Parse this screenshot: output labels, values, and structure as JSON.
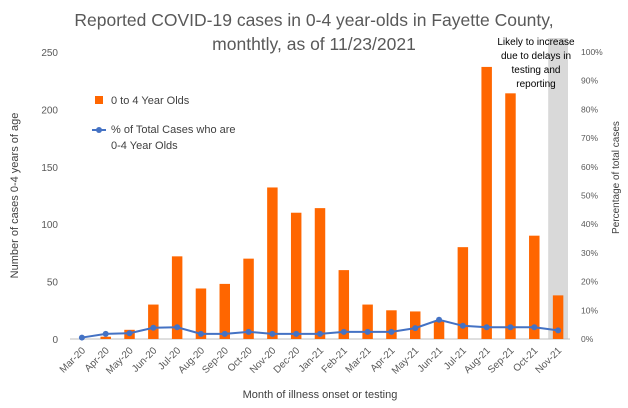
{
  "title_line1": "Reported COVID-19 cases in 0-4 year-olds in Fayette County,",
  "title_line2": "monthtly, as of 11/23/2021",
  "chart_data": {
    "type": "bar",
    "categories": [
      "Mar-20",
      "Apr-20",
      "May-20",
      "Jun-20",
      "Jul-20",
      "Aug-20",
      "Sep-20",
      "Oct-20",
      "Nov-20",
      "Dec-20",
      "Jan-21",
      "Feb-21",
      "Mar-21",
      "Apr-21",
      "May-21",
      "Jun-21",
      "Jul-21",
      "Aug-21",
      "Sep-21",
      "Oct-21",
      "Nov-21"
    ],
    "series": [
      {
        "name": "0 to 4 Year Olds",
        "type": "bar",
        "axis": "left",
        "color": "#FF6600",
        "values": [
          0,
          2,
          8,
          30,
          72,
          44,
          48,
          70,
          132,
          110,
          114,
          60,
          30,
          25,
          24,
          16,
          80,
          237,
          214,
          90,
          38
        ]
      },
      {
        "name_lines": [
          "% of Total Cases who are",
          "0-4 Year Olds"
        ],
        "type": "line",
        "axis": "right",
        "color": "#4472C4",
        "values": [
          0.5,
          1.8,
          2.0,
          3.9,
          4.1,
          1.8,
          1.8,
          2.5,
          1.8,
          1.8,
          1.8,
          2.5,
          2.5,
          2.5,
          3.8,
          6.7,
          4.6,
          4.1,
          4.1,
          4.1,
          3.0
        ]
      }
    ],
    "xlabel": "Month of illness onset or testing",
    "ylabel": "Number of cases 0-4 years of age",
    "y2label": "Percentage of total cases",
    "ylim": [
      0,
      250
    ],
    "y_ticks": [
      "0",
      "50",
      "100",
      "150",
      "200",
      "250"
    ],
    "y2lim": [
      0,
      100
    ],
    "y2_ticks": [
      "0%",
      "10%",
      "20%",
      "30%",
      "40%",
      "50%",
      "60%",
      "70%",
      "80%",
      "90%",
      "100%"
    ],
    "grid": false,
    "legend_position": "left",
    "shaded_categories": [
      "Nov-21"
    ],
    "annotation_lines": [
      "Likely to increase",
      "due to delays in",
      "testing and",
      "reporting"
    ]
  }
}
